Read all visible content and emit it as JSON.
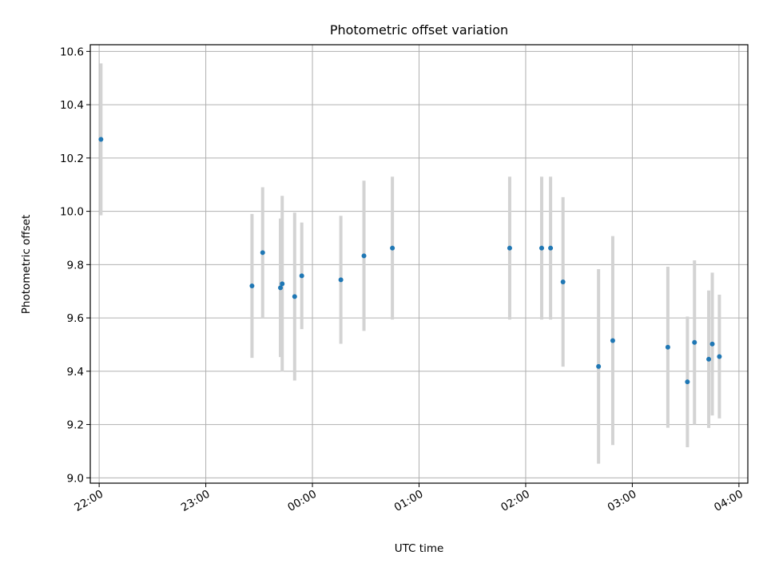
{
  "chart_data": {
    "type": "scatter",
    "title": "Photometric offset variation",
    "xlabel": "UTC time",
    "ylabel": "Photometric offset",
    "x_axis_type": "time",
    "xlim": [
      "21:55",
      "04:05"
    ],
    "ylim": [
      8.98,
      10.625
    ],
    "x_ticks": [
      "22:00",
      "23:00",
      "00:00",
      "01:00",
      "02:00",
      "03:00",
      "04:00"
    ],
    "y_ticks": [
      9.0,
      9.2,
      9.4,
      9.6,
      9.8,
      10.0,
      10.2,
      10.4,
      10.6
    ],
    "y_tick_labels": [
      "9.0",
      "9.2",
      "9.4",
      "9.6",
      "9.8",
      "10.0",
      "10.2",
      "10.4",
      "10.6"
    ],
    "grid": true,
    "marker_color": "#1f77b4",
    "errorbar_color": "#d3d3d3",
    "points": [
      {
        "time": "22:01",
        "y": 10.27,
        "err": 0.285
      },
      {
        "time": "23:26",
        "y": 9.72,
        "err": 0.27
      },
      {
        "time": "23:32",
        "y": 9.845,
        "err": 0.245
      },
      {
        "time": "23:42",
        "y": 9.713,
        "err": 0.26
      },
      {
        "time": "23:43",
        "y": 9.728,
        "err": 0.33
      },
      {
        "time": "23:50",
        "y": 9.68,
        "err": 0.315
      },
      {
        "time": "23:54",
        "y": 9.758,
        "err": 0.2
      },
      {
        "time": "00:16",
        "y": 9.743,
        "err": 0.24
      },
      {
        "time": "00:29",
        "y": 9.833,
        "err": 0.282
      },
      {
        "time": "00:45",
        "y": 9.862,
        "err": 0.268
      },
      {
        "time": "01:51",
        "y": 9.862,
        "err": 0.268
      },
      {
        "time": "02:09",
        "y": 9.862,
        "err": 0.268
      },
      {
        "time": "02:14",
        "y": 9.862,
        "err": 0.268
      },
      {
        "time": "02:21",
        "y": 9.735,
        "err": 0.318
      },
      {
        "time": "02:41",
        "y": 9.418,
        "err": 0.365
      },
      {
        "time": "02:49",
        "y": 9.515,
        "err": 0.392
      },
      {
        "time": "03:20",
        "y": 9.49,
        "err": 0.302
      },
      {
        "time": "03:31",
        "y": 9.36,
        "err": 0.245
      },
      {
        "time": "03:35",
        "y": 9.508,
        "err": 0.308
      },
      {
        "time": "03:43",
        "y": 9.445,
        "err": 0.258
      },
      {
        "time": "03:45",
        "y": 9.502,
        "err": 0.268
      },
      {
        "time": "03:49",
        "y": 9.455,
        "err": 0.232
      }
    ]
  }
}
